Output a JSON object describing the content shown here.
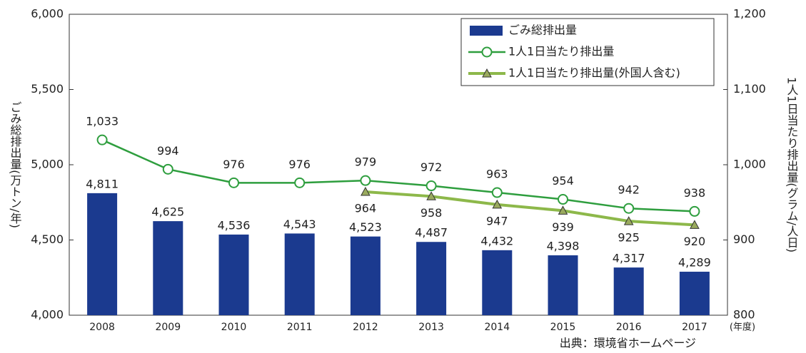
{
  "chart_data": {
    "type": "bar",
    "categories": [
      "2008",
      "2009",
      "2010",
      "2011",
      "2012",
      "2013",
      "2014",
      "2015",
      "2016",
      "2017"
    ],
    "x_unit": "(年度)",
    "ylabel": "ごみ総排出量(万トン/年)",
    "y2label": "1人1日当たり排出量(グラム/人日)",
    "source": "出典：環境省ホームページ",
    "ylim": [
      4000,
      6000
    ],
    "yticks": [
      {
        "value": 4000,
        "label": "4,000"
      },
      {
        "value": 4500,
        "label": "4,500"
      },
      {
        "value": 5000,
        "label": "5,000"
      },
      {
        "value": 5500,
        "label": "5,500"
      },
      {
        "value": 6000,
        "label": "6,000"
      }
    ],
    "y2lim": [
      800,
      1200
    ],
    "y2ticks": [
      800,
      900,
      {
        "value": 1000,
        "label": "1,000"
      },
      {
        "value": 1100,
        "label": "1,100"
      },
      {
        "value": 1200,
        "label": "1,200"
      }
    ],
    "legend": "top-right",
    "series": [
      {
        "name": "ごみ総排出量",
        "type": "bar",
        "color": "#1b3a8f",
        "values": [
          4811,
          4625,
          4536,
          4543,
          4523,
          4487,
          4432,
          4398,
          4317,
          4289
        ],
        "value_labels": [
          "4,811",
          "4,625",
          "4,536",
          "4,543",
          "4,523",
          "4,487",
          "4,432",
          "4,398",
          "4,317",
          "4,289"
        ]
      },
      {
        "name": "1人1日当たり排出量",
        "type": "line",
        "axis": "y2",
        "color": "#2e9e3e",
        "marker": "circle",
        "values": [
          1033,
          994,
          976,
          976,
          979,
          972,
          963,
          954,
          942,
          938
        ],
        "value_labels": [
          "1,033",
          "994",
          "976",
          "976",
          "979",
          "972",
          "963",
          "954",
          "942",
          "938"
        ]
      },
      {
        "name": "1人1日当たり排出量(外国人含む)",
        "type": "line",
        "axis": "y2",
        "color": "#8db84a",
        "marker": "triangle",
        "values": [
          null,
          null,
          null,
          null,
          964,
          958,
          947,
          939,
          925,
          920
        ],
        "value_labels": [
          null,
          null,
          null,
          null,
          "964",
          "958",
          "947",
          "939",
          "925",
          "920"
        ]
      }
    ]
  }
}
